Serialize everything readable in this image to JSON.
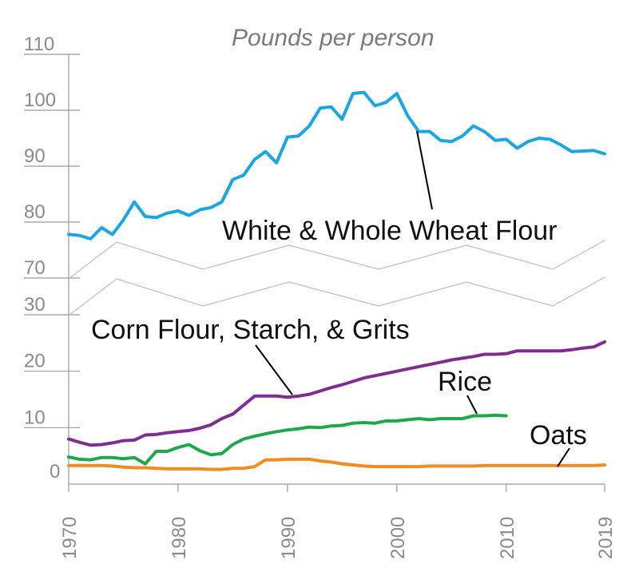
{
  "chart_data": {
    "type": "line",
    "title": "Pounds per person",
    "xlabel": "",
    "ylabel": "Pounds per person",
    "x_ticks": [
      "1970",
      "1980",
      "1990",
      "2000",
      "2010",
      "2019"
    ],
    "y_ticks_upper": [
      "110",
      "100",
      "90",
      "80",
      "70"
    ],
    "y_ticks_lower": [
      "30",
      "20",
      "10",
      "0"
    ],
    "ylim_upper": [
      70,
      110
    ],
    "ylim_lower": [
      0,
      30
    ],
    "axis_break": "between 30 and 70",
    "colors": {
      "wheat": "#1aa6e0",
      "corn": "#7f2d91",
      "rice": "#1ea84a",
      "oats": "#f28c1e"
    },
    "series": [
      {
        "name": "White & Whole Wheat Flour",
        "key": "wheat",
        "panel": "upper",
        "x": [
          1970,
          1971,
          1972,
          1973,
          1974,
          1975,
          1976,
          1977,
          1978,
          1979,
          1980,
          1981,
          1982,
          1983,
          1984,
          1985,
          1986,
          1987,
          1988,
          1989,
          1990,
          1991,
          1992,
          1993,
          1994,
          1995,
          1996,
          1997,
          1998,
          1999,
          2000,
          2001,
          2002,
          2003,
          2004,
          2005,
          2006,
          2007,
          2008,
          2009,
          2010,
          2011,
          2012,
          2013,
          2014,
          2015,
          2016,
          2017,
          2018,
          2019
        ],
        "values": [
          77.8,
          77.6,
          77.0,
          79.0,
          77.8,
          80.4,
          83.6,
          81.0,
          80.8,
          81.6,
          82.0,
          81.2,
          82.2,
          82.6,
          83.6,
          87.6,
          88.4,
          91.2,
          92.6,
          90.6,
          95.2,
          95.4,
          97.2,
          100.4,
          100.6,
          98.4,
          103.0,
          103.2,
          100.8,
          101.4,
          103.0,
          99.0,
          96.2,
          96.2,
          94.6,
          94.4,
          95.4,
          97.2,
          96.2,
          94.6,
          94.8,
          93.2,
          94.4,
          95.0,
          94.8,
          93.8,
          92.6,
          92.7,
          92.8,
          92.2
        ]
      },
      {
        "name": "Corn Flour, Starch, & Grits",
        "key": "corn",
        "panel": "lower",
        "x": [
          1970,
          1971,
          1972,
          1973,
          1974,
          1975,
          1976,
          1977,
          1978,
          1979,
          1980,
          1981,
          1982,
          1983,
          1984,
          1985,
          1986,
          1987,
          1988,
          1989,
          1990,
          1991,
          1992,
          1993,
          1994,
          1995,
          1996,
          1997,
          1998,
          1999,
          2000,
          2001,
          2002,
          2003,
          2004,
          2005,
          2006,
          2007,
          2008,
          2009,
          2010,
          2011,
          2012,
          2013,
          2014,
          2015,
          2016,
          2017,
          2018,
          2019
        ],
        "values": [
          8.0,
          7.4,
          6.9,
          7.0,
          7.3,
          7.7,
          7.8,
          8.7,
          8.8,
          9.1,
          9.3,
          9.5,
          9.9,
          10.5,
          11.6,
          12.4,
          14.0,
          15.6,
          15.6,
          15.6,
          15.4,
          15.6,
          15.9,
          16.5,
          17.1,
          17.6,
          18.2,
          18.8,
          19.2,
          19.6,
          20.0,
          20.4,
          20.8,
          21.2,
          21.6,
          22.0,
          22.3,
          22.6,
          23.0,
          23.0,
          23.1,
          23.6,
          23.6,
          23.6,
          23.6,
          23.6,
          23.8,
          24.1,
          24.3,
          25.2
        ]
      },
      {
        "name": "Rice",
        "key": "rice",
        "panel": "lower",
        "x": [
          1970,
          1971,
          1972,
          1973,
          1974,
          1975,
          1976,
          1977,
          1978,
          1979,
          1980,
          1981,
          1982,
          1983,
          1984,
          1985,
          1986,
          1987,
          1988,
          1989,
          1990,
          1991,
          1992,
          1993,
          1994,
          1995,
          1996,
          1997,
          1998,
          1999,
          2000,
          2001,
          2002,
          2003,
          2004,
          2005,
          2006,
          2007,
          2008,
          2009,
          2010
        ],
        "values": [
          4.8,
          4.4,
          4.3,
          4.7,
          4.7,
          4.5,
          4.7,
          3.6,
          5.8,
          5.8,
          6.5,
          7.0,
          5.9,
          5.2,
          5.4,
          7.0,
          8.0,
          8.5,
          8.9,
          9.3,
          9.6,
          9.8,
          10.1,
          10.0,
          10.3,
          10.4,
          10.8,
          10.9,
          10.8,
          11.2,
          11.2,
          11.4,
          11.6,
          11.4,
          11.6,
          11.6,
          11.6,
          12.1,
          12.1,
          12.2,
          12.1
        ]
      },
      {
        "name": "Oats",
        "key": "oats",
        "panel": "lower",
        "x": [
          1970,
          1971,
          1972,
          1973,
          1974,
          1975,
          1976,
          1977,
          1978,
          1979,
          1980,
          1981,
          1982,
          1983,
          1984,
          1985,
          1986,
          1987,
          1988,
          1989,
          1990,
          1991,
          1992,
          1993,
          1994,
          1995,
          1996,
          1997,
          1998,
          1999,
          2000,
          2001,
          2002,
          2003,
          2004,
          2005,
          2006,
          2007,
          2008,
          2009,
          2010,
          2011,
          2012,
          2013,
          2014,
          2015,
          2016,
          2017,
          2018,
          2019
        ],
        "values": [
          3.3,
          3.3,
          3.3,
          3.3,
          3.2,
          3.0,
          2.9,
          2.9,
          2.8,
          2.7,
          2.7,
          2.7,
          2.7,
          2.6,
          2.6,
          2.8,
          2.8,
          3.1,
          4.3,
          4.3,
          4.4,
          4.4,
          4.4,
          4.1,
          3.9,
          3.6,
          3.4,
          3.2,
          3.1,
          3.1,
          3.1,
          3.1,
          3.1,
          3.2,
          3.2,
          3.2,
          3.2,
          3.2,
          3.3,
          3.3,
          3.3,
          3.3,
          3.3,
          3.3,
          3.3,
          3.3,
          3.3,
          3.3,
          3.3,
          3.4
        ]
      }
    ],
    "annotations": [
      "White & Whole Wheat Flour",
      "Corn Flour, Starch, & Grits",
      "Rice",
      "Oats"
    ]
  }
}
